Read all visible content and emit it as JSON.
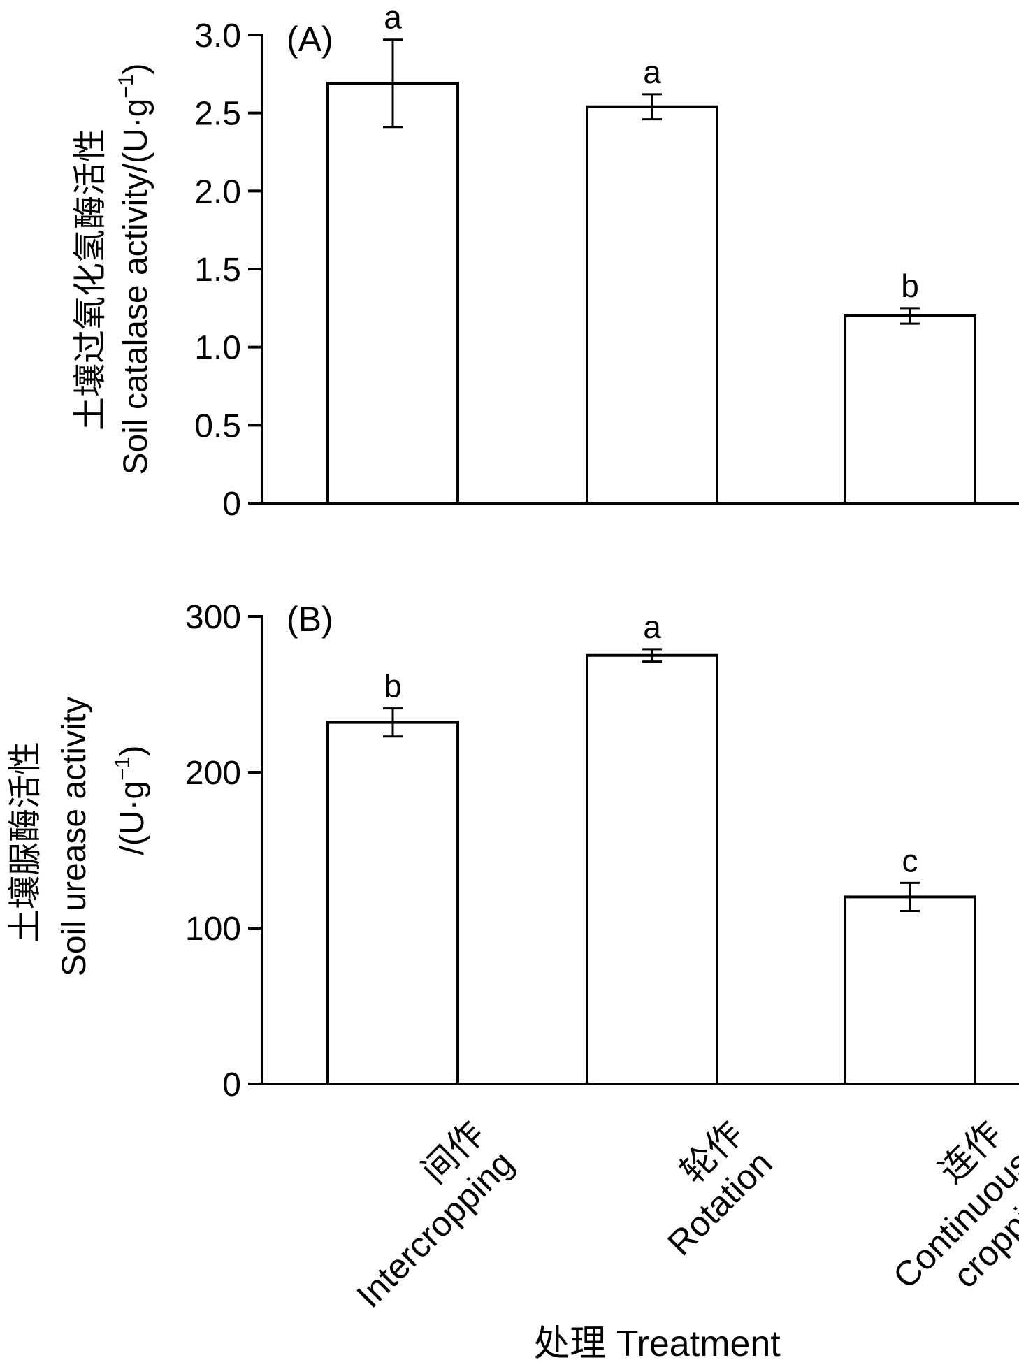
{
  "chart_data": [
    {
      "type": "bar",
      "panel_label": "(A)",
      "categories": [
        "间作 Intercropping",
        "轮作 Rotation",
        "连作 Continuous cropping"
      ],
      "values": [
        2.69,
        2.54,
        1.2
      ],
      "errors": [
        0.28,
        0.08,
        0.05
      ],
      "significance": [
        "a",
        "a",
        "b"
      ],
      "ylabel_cn": "土壤过氧化氢酶活性",
      "ylabel_en": "Soil catalase activity/(U·g",
      "ylabel_sup": "−1",
      "ylabel_close": ")",
      "ylim": [
        0,
        3.0
      ],
      "yticks": [
        "0",
        "0.5",
        "1.0",
        "1.5",
        "2.0",
        "2.5",
        "3.0"
      ],
      "yticks_values": [
        0,
        0.5,
        1.0,
        1.5,
        2.0,
        2.5,
        3.0
      ],
      "bar_fill": "#ffffff",
      "bar_stroke": "#000000"
    },
    {
      "type": "bar",
      "panel_label": "(B)",
      "categories": [
        "间作 Intercropping",
        "轮作 Rotation",
        "连作 Continuous cropping"
      ],
      "values": [
        232,
        275,
        120
      ],
      "errors": [
        9,
        4,
        9
      ],
      "significance": [
        "b",
        "a",
        "c"
      ],
      "ylabel_cn": "土壤脲酶活性",
      "ylabel_en": "Soil urease activity",
      "ylabel_unit": "/(U·g",
      "ylabel_sup": "−1",
      "ylabel_close": ")",
      "ylim": [
        0,
        300
      ],
      "yticks": [
        "0",
        "100",
        "200",
        "300"
      ],
      "yticks_values": [
        0,
        100,
        200,
        300
      ],
      "bar_fill": "#ffffff",
      "bar_stroke": "#000000"
    }
  ],
  "x_categories": [
    {
      "cn": "间作",
      "en": [
        "Intercropping"
      ]
    },
    {
      "cn": "轮作",
      "en": [
        "Rotation"
      ]
    },
    {
      "cn": "连作",
      "en": [
        "Continuous",
        "cropping"
      ]
    }
  ],
  "xlabel": "处理 Treatment"
}
